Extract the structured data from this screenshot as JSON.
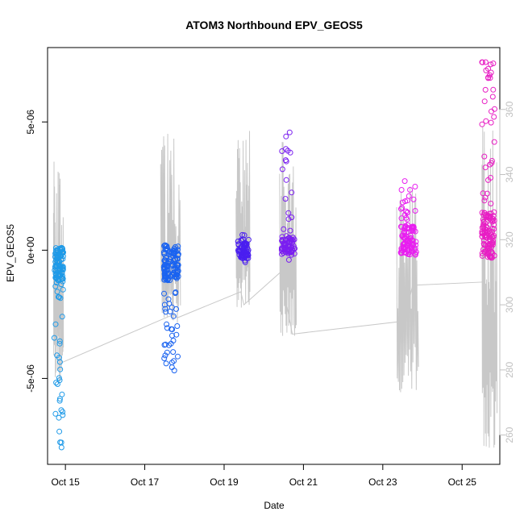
{
  "chart_data": {
    "type": "scatter",
    "title": "ATOM3 Northbound EPV_GEOS5",
    "xlabel": "Date",
    "ylabel": "EPV_GEOS5",
    "xlim": [
      14.55,
      25.95
    ],
    "ylim": [
      -8.35e-06,
      7.9e-06
    ],
    "y2lim": [
      251,
      379
    ],
    "x_ticks": [
      {
        "value": 15,
        "label": "Oct 15"
      },
      {
        "value": 17,
        "label": "Oct 17"
      },
      {
        "value": 19,
        "label": "Oct 19"
      },
      {
        "value": 21,
        "label": "Oct 21"
      },
      {
        "value": 23,
        "label": "Oct 23"
      },
      {
        "value": 25,
        "label": "Oct 25"
      }
    ],
    "y_ticks": [
      {
        "value": -5e-06,
        "label": "-5e-06"
      },
      {
        "value": 0,
        "label": "0e+00"
      },
      {
        "value": 5e-06,
        "label": "5e-06"
      }
    ],
    "y2_ticks": [
      {
        "value": 260,
        "label": "260"
      },
      {
        "value": 280,
        "label": "280"
      },
      {
        "value": 300,
        "label": "300"
      },
      {
        "value": 320,
        "label": "320"
      },
      {
        "value": 340,
        "label": "340"
      },
      {
        "value": 360,
        "label": "360"
      }
    ],
    "grid": false,
    "colors": {
      "segment_1": "#1e9ae8",
      "segment_2": "#1a63f0",
      "segment_3": "#4a1ef0",
      "segment_4": "#7a1ef0",
      "segment_5": "#e81ef0",
      "segment_6": "#e81ec4",
      "theta_line": "#c8c8c8"
    },
    "point_clusters": [
      {
        "color_key": "segment_1",
        "x_range": [
          14.72,
          14.95
        ],
        "y_core": [
          -1.2e-06,
          1e-07
        ],
        "y_min": -7.8e-06,
        "y_max": 1e-07,
        "count": 130
      },
      {
        "color_key": "segment_2",
        "x_range": [
          17.48,
          17.85
        ],
        "y_core": [
          -1.2e-06,
          2e-07
        ],
        "y_min": -4.7e-06,
        "y_max": 3e-07,
        "count": 150
      },
      {
        "color_key": "segment_3",
        "x_range": [
          19.35,
          19.62
        ],
        "y_core": [
          -3e-07,
          3e-07
        ],
        "y_min": -5e-07,
        "y_max": 6e-07,
        "count": 70
      },
      {
        "color_key": "segment_4",
        "x_range": [
          20.45,
          20.78
        ],
        "y_core": [
          -2e-07,
          5e-07
        ],
        "y_min": -5e-07,
        "y_max": 4.6e-06,
        "count": 80
      },
      {
        "color_key": "segment_5",
        "x_range": [
          23.45,
          23.85
        ],
        "y_core": [
          -2e-07,
          1e-06
        ],
        "y_min": -2e-07,
        "y_max": 2.8e-06,
        "count": 110
      },
      {
        "color_key": "segment_6",
        "x_range": [
          25.5,
          25.82
        ],
        "y_core": [
          -3e-07,
          1.5e-06
        ],
        "y_min": -3e-07,
        "y_max": 7.5e-06,
        "count": 140
      }
    ],
    "theta_series": {
      "name": "",
      "base": [
        {
          "x": 14.86,
          "y": 282
        },
        {
          "x": 17.72,
          "y": 297
        },
        {
          "x": 17.82,
          "y": 296
        },
        {
          "x": 19.42,
          "y": 304
        },
        {
          "x": 19.5,
          "y": 300
        },
        {
          "x": 20.42,
          "y": 310
        },
        {
          "x": 20.72,
          "y": 291
        },
        {
          "x": 23.55,
          "y": 295
        },
        {
          "x": 23.75,
          "y": 306
        },
        {
          "x": 25.55,
          "y": 307
        }
      ],
      "spikes": [
        {
          "x_range": [
            14.7,
            14.95
          ],
          "y_min": 275,
          "y_max": 348
        },
        {
          "x_range": [
            17.4,
            17.9
          ],
          "y_min": 294,
          "y_max": 355
        },
        {
          "x_range": [
            19.3,
            19.65
          ],
          "y_min": 299,
          "y_max": 357
        },
        {
          "x_range": [
            20.4,
            20.82
          ],
          "y_min": 290,
          "y_max": 352
        },
        {
          "x_range": [
            23.35,
            23.9
          ],
          "y_min": 273,
          "y_max": 340
        },
        {
          "x_range": [
            25.5,
            25.88
          ],
          "y_min": 256,
          "y_max": 366
        }
      ]
    }
  }
}
